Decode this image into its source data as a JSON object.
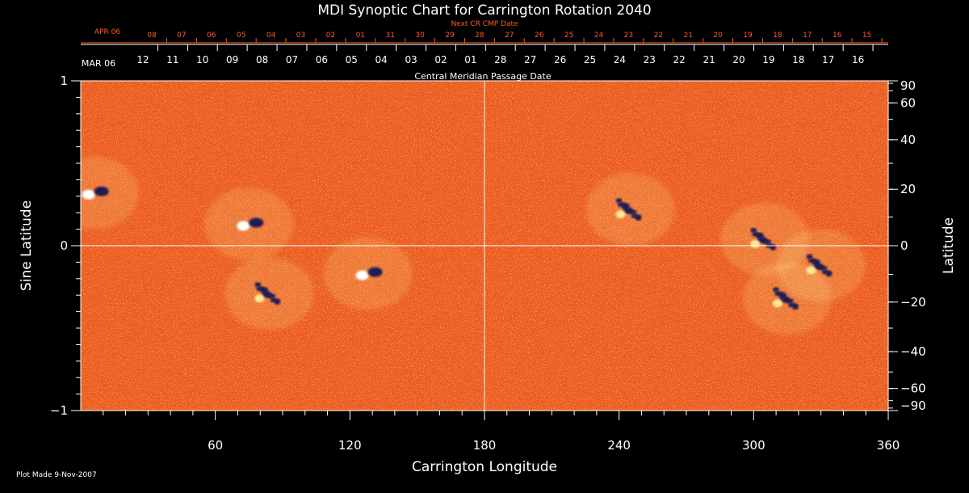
{
  "chart_data": {
    "type": "heatmap",
    "title": "MDI Synoptic Chart for Carrington Rotation 2040",
    "xlabel": "Carrington Longitude",
    "ylabel_left": "Sine Latitude",
    "ylabel_right": "Latitude",
    "xlim": [
      0,
      360
    ],
    "ylim": [
      -1,
      1
    ],
    "x_ticks": [
      60,
      120,
      180,
      240,
      300,
      360
    ],
    "y_ticks_left": [
      1,
      0,
      -1
    ],
    "y_ticks_right": [
      90,
      60,
      40,
      20,
      0,
      -20,
      -40,
      -60,
      -90
    ],
    "top_axis_label": "Central Meridian Passage Date",
    "current_dates": {
      "start_label": "MAR 06",
      "labels": [
        "12",
        "11",
        "10",
        "09",
        "08",
        "07",
        "06",
        "05",
        "04",
        "03",
        "02",
        "01",
        "28",
        "27",
        "26",
        "25",
        "24",
        "23",
        "22",
        "21",
        "20",
        "19",
        "18",
        "17",
        "16"
      ]
    },
    "next_dates": {
      "title": "Next CR CMP Date",
      "start_label": "APR 06",
      "labels": [
        "08",
        "07",
        "06",
        "05",
        "04",
        "03",
        "02",
        "01",
        "31",
        "30",
        "29",
        "28",
        "27",
        "26",
        "25",
        "24",
        "23",
        "22",
        "21",
        "20",
        "19",
        "18",
        "17",
        "16",
        "15"
      ]
    },
    "grid_lines": {
      "longitude": 180,
      "sine_latitude": 0
    },
    "colors": {
      "background": "#000000",
      "field_base": "#ef5a1a",
      "positive": "#fff3a0",
      "negative": "#1a1a55",
      "axis": "#ffffff",
      "next_dates": "#ff5a28"
    },
    "active_regions": [
      {
        "lon": 128,
        "sinlat": -0.17,
        "polarity": "bipolar"
      },
      {
        "lon": 245,
        "sinlat": 0.22,
        "polarity": "negative"
      },
      {
        "lon": 315,
        "sinlat": -0.32,
        "polarity": "negative"
      },
      {
        "lon": 6,
        "sinlat": 0.32,
        "polarity": "bipolar"
      },
      {
        "lon": 75,
        "sinlat": 0.13,
        "polarity": "bipolar"
      },
      {
        "lon": 84,
        "sinlat": -0.29,
        "polarity": "negative"
      },
      {
        "lon": 305,
        "sinlat": 0.04,
        "polarity": "negative"
      },
      {
        "lon": 330,
        "sinlat": -0.12,
        "polarity": "negative"
      }
    ]
  },
  "footer": {
    "plot_made": "Plot Made  9-Nov-2007"
  }
}
